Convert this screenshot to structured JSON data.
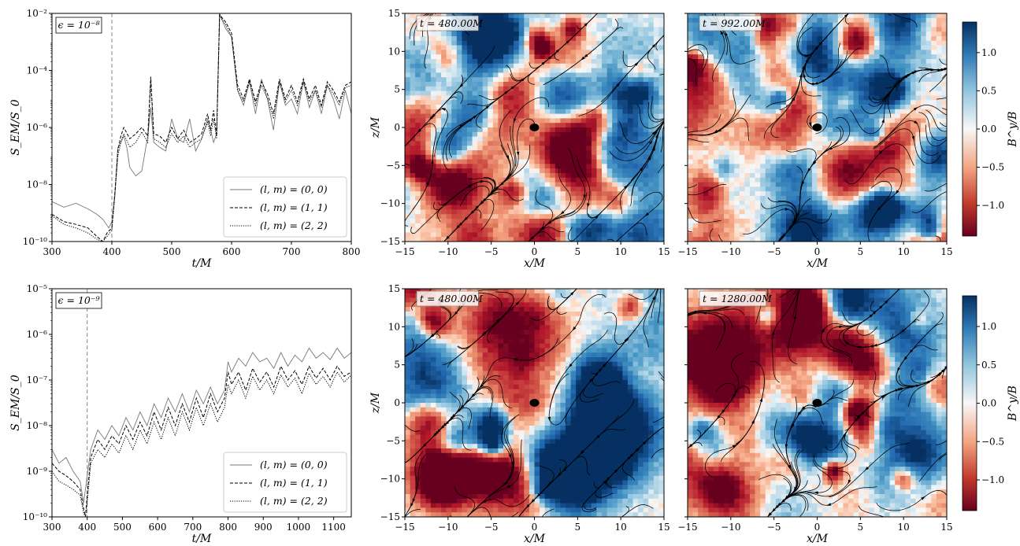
{
  "chart_data": [
    {
      "type": "line",
      "ylabel": "S_EM/S_0",
      "xlabel": "t/M",
      "yscale": "log",
      "xlim": [
        300,
        800
      ],
      "ylim": [
        1e-10,
        0.01
      ],
      "xticks": [
        "300",
        "400",
        "500",
        "600",
        "700",
        "800"
      ],
      "yticks": [
        {
          "v": 1e-10,
          "t": "10⁻¹⁰"
        },
        {
          "v": 1e-08,
          "t": "10⁻⁸"
        },
        {
          "v": 1e-06,
          "t": "10⁻⁶"
        },
        {
          "v": 0.0001,
          "t": "10⁻⁴"
        },
        {
          "v": 0.01,
          "t": "10⁻²"
        }
      ],
      "annotation": "ϵ = 10⁻⁸",
      "vline_x": 400,
      "legend_position": "lower-right",
      "series": [
        {
          "name": "(l, m) = (0, 0)",
          "style": "solid",
          "color": "#777777",
          "x": [
            300,
            320,
            340,
            360,
            375,
            385,
            395,
            400,
            405,
            410,
            415,
            420,
            425,
            430,
            440,
            450,
            460,
            465,
            470,
            480,
            490,
            500,
            510,
            520,
            530,
            540,
            550,
            560,
            565,
            570,
            575,
            580,
            590,
            600,
            610,
            620,
            630,
            640,
            650,
            660,
            670,
            680,
            690,
            700,
            710,
            720,
            730,
            740,
            750,
            760,
            770,
            780,
            790,
            800
          ],
          "y": [
            2.5e-09,
            1.6e-09,
            2.2e-09,
            1.4e-09,
            9e-10,
            6e-10,
            3e-10,
            5e-10,
            4e-09,
            2e-07,
            3e-07,
            5e-07,
            2e-07,
            4e-08,
            2e-08,
            3e-08,
            5e-07,
            5e-06,
            3e-07,
            2e-07,
            1.5e-07,
            2e-06,
            4e-07,
            3e-07,
            2e-06,
            1.5e-07,
            4e-07,
            2e-06,
            8e-07,
            3e-07,
            6e-07,
            0.01,
            0.003,
            0.0015,
            2e-05,
            6e-06,
            4e-05,
            3e-06,
            5e-05,
            1e-05,
            8e-07,
            4e-05,
            6e-06,
            1e-05,
            3e-06,
            4e-05,
            5e-06,
            2e-05,
            3e-06,
            3e-05,
            1e-05,
            2e-06,
            2e-05,
            3e-06
          ]
        },
        {
          "name": "(l, m) = (1, 1)",
          "style": "dashed",
          "color": "#000000",
          "x": [
            300,
            320,
            340,
            360,
            375,
            385,
            392,
            400,
            405,
            410,
            415,
            420,
            430,
            440,
            450,
            460,
            465,
            470,
            480,
            490,
            500,
            510,
            520,
            530,
            540,
            550,
            560,
            565,
            570,
            575,
            580,
            590,
            600,
            610,
            620,
            630,
            640,
            650,
            660,
            670,
            680,
            690,
            700,
            710,
            720,
            730,
            740,
            750,
            760,
            770,
            780,
            790,
            800
          ],
          "y": [
            9e-10,
            5e-10,
            4e-10,
            3e-10,
            1.5e-10,
            1e-10,
            2e-10,
            3e-10,
            5e-09,
            1.5e-07,
            5e-07,
            1e-06,
            4e-07,
            6e-07,
            1e-06,
            5e-07,
            6e-05,
            6e-07,
            5e-07,
            3e-07,
            1e-06,
            4e-07,
            8e-07,
            3e-07,
            4e-07,
            6e-07,
            3e-06,
            8e-07,
            4e-06,
            5e-07,
            0.009,
            0.005,
            0.002,
            3e-05,
            1e-05,
            5e-05,
            8e-06,
            4e-05,
            1.5e-05,
            3e-06,
            5e-05,
            1e-05,
            3e-05,
            8e-06,
            5e-05,
            1e-05,
            3e-05,
            6e-06,
            4e-05,
            2e-05,
            8e-06,
            3e-05,
            4e-05
          ]
        },
        {
          "name": "(l, m) = (2, 2)",
          "style": "dotted",
          "color": "#000000",
          "x": [
            300,
            320,
            340,
            360,
            375,
            385,
            392,
            400,
            405,
            410,
            415,
            420,
            430,
            440,
            450,
            460,
            465,
            470,
            480,
            490,
            500,
            510,
            520,
            530,
            540,
            550,
            560,
            565,
            570,
            575,
            580,
            590,
            600,
            610,
            620,
            630,
            640,
            650,
            660,
            670,
            680,
            690,
            700,
            710,
            720,
            730,
            740,
            750,
            760,
            770,
            780,
            790,
            800
          ],
          "y": [
            8e-10,
            4e-10,
            3e-10,
            2e-10,
            1.2e-10,
            1e-10,
            1.5e-10,
            2.5e-10,
            4e-09,
            1e-07,
            3e-07,
            6e-07,
            2e-07,
            3e-07,
            7e-07,
            3e-07,
            4e-05,
            4e-07,
            3e-07,
            2e-07,
            6e-07,
            3e-07,
            5e-07,
            2e-07,
            3e-07,
            4e-07,
            1.5e-06,
            5e-07,
            2e-06,
            4e-07,
            0.008,
            0.004,
            0.0015,
            2e-05,
            8e-06,
            4e-05,
            6e-06,
            3e-05,
            1e-05,
            2e-06,
            4e-05,
            8e-06,
            2e-05,
            6e-06,
            4e-05,
            8e-06,
            2e-05,
            5e-06,
            3e-05,
            1.5e-05,
            6e-06,
            2.5e-05,
            3e-05
          ]
        }
      ]
    },
    {
      "type": "heatmap",
      "annotation": "t = 480.00M",
      "xlabel": "x/M",
      "ylabel": "z/M",
      "xlim": [
        -15,
        15
      ],
      "ylim": [
        -15,
        15
      ],
      "xticks": [
        "−15",
        "−10",
        "−5",
        "0",
        "5",
        "10",
        "15"
      ],
      "yticks": [
        "−15",
        "−10",
        "−5",
        "0",
        "5",
        "10",
        "15"
      ]
    },
    {
      "type": "heatmap",
      "annotation": "t = 992.00M",
      "xlabel": "x/M",
      "xlim": [
        -15,
        15
      ],
      "ylim": [
        -15,
        15
      ],
      "xticks": [
        "−15",
        "−10",
        "−5",
        "0",
        "5",
        "10",
        "15"
      ]
    },
    {
      "type": "colorbar",
      "label": "B^y/B",
      "range": [
        -1.4,
        1.4
      ],
      "ticks": [
        "1.0",
        "0.5",
        "0.0",
        "−0.5",
        "−1.0"
      ],
      "tick_values": [
        1.0,
        0.5,
        0.0,
        -0.5,
        -1.0
      ]
    },
    {
      "type": "line",
      "ylabel": "S_EM/S_0",
      "xlabel": "t/M",
      "yscale": "log",
      "xlim": [
        300,
        1150
      ],
      "ylim": [
        1e-10,
        1e-05
      ],
      "xticks": [
        "300",
        "400",
        "500",
        "600",
        "700",
        "800",
        "900",
        "1000",
        "1100"
      ],
      "yticks": [
        {
          "v": 1e-10,
          "t": "10⁻¹⁰"
        },
        {
          "v": 1e-09,
          "t": "10⁻⁹"
        },
        {
          "v": 1e-08,
          "t": "10⁻⁸"
        },
        {
          "v": 1e-07,
          "t": "10⁻⁷"
        },
        {
          "v": 1e-06,
          "t": "10⁻⁶"
        },
        {
          "v": 1e-05,
          "t": "10⁻⁵"
        }
      ],
      "annotation": "ϵ = 10⁻⁹",
      "vline_x": 400,
      "legend_position": "lower-right",
      "series": [
        {
          "name": "(l, m) = (0, 0)",
          "style": "solid",
          "color": "#777777",
          "x": [
            300,
            320,
            340,
            360,
            380,
            390,
            400,
            410,
            430,
            450,
            470,
            490,
            510,
            530,
            550,
            570,
            590,
            610,
            630,
            650,
            670,
            690,
            710,
            730,
            750,
            770,
            790,
            800,
            810,
            830,
            850,
            870,
            890,
            910,
            930,
            950,
            970,
            990,
            1010,
            1030,
            1050,
            1070,
            1090,
            1110,
            1130,
            1150
          ],
          "y": [
            3e-09,
            1.5e-09,
            2e-09,
            1e-09,
            6e-10,
            2e-10,
            8e-10,
            3e-09,
            8e-09,
            5e-09,
            1e-08,
            6e-09,
            1.5e-08,
            8e-09,
            2e-08,
            1e-08,
            3e-08,
            1.5e-08,
            4e-08,
            2e-08,
            5e-08,
            2e-08,
            6e-08,
            3e-08,
            7e-08,
            3e-08,
            6e-08,
            2.5e-07,
            1.5e-07,
            3e-07,
            2e-07,
            4e-07,
            2.5e-07,
            3e-07,
            1.8e-07,
            4e-07,
            2e-07,
            3.5e-07,
            2.5e-07,
            5e-07,
            3e-07,
            4e-07,
            2.8e-07,
            5e-07,
            3e-07,
            4e-07
          ]
        },
        {
          "name": "(l, m) = (1, 1)",
          "style": "dashed",
          "color": "#000000",
          "x": [
            300,
            320,
            340,
            360,
            380,
            390,
            395,
            400,
            410,
            430,
            450,
            470,
            490,
            510,
            530,
            550,
            570,
            590,
            610,
            630,
            650,
            670,
            690,
            710,
            730,
            750,
            770,
            790,
            800,
            810,
            830,
            850,
            870,
            890,
            910,
            930,
            950,
            970,
            990,
            1010,
            1030,
            1050,
            1070,
            1090,
            1110,
            1130,
            1150
          ],
          "y": [
            1.5e-09,
            1e-09,
            8e-10,
            6e-10,
            4e-10,
            1.5e-10,
            1e-10,
            3e-10,
            2e-09,
            5e-09,
            3e-09,
            6e-09,
            4e-09,
            1e-08,
            5e-09,
            1.2e-08,
            6e-09,
            2e-08,
            8e-09,
            2.5e-08,
            1e-08,
            3e-08,
            1.2e-08,
            4e-08,
            1.5e-08,
            5e-08,
            2e-08,
            4e-08,
            1.5e-07,
            8e-08,
            1.5e-07,
            6e-08,
            1.8e-07,
            9e-08,
            1.5e-07,
            7e-08,
            2e-07,
            1e-07,
            1.6e-07,
            8e-08,
            2e-07,
            1.1e-07,
            1.8e-07,
            1e-07,
            2e-07,
            1.2e-07,
            1.5e-07
          ]
        },
        {
          "name": "(l, m) = (2, 2)",
          "style": "dotted",
          "color": "#000000",
          "x": [
            300,
            320,
            340,
            360,
            380,
            390,
            395,
            400,
            410,
            430,
            450,
            470,
            490,
            510,
            530,
            550,
            570,
            590,
            610,
            630,
            650,
            670,
            690,
            710,
            730,
            750,
            770,
            790,
            800,
            810,
            830,
            850,
            870,
            890,
            910,
            930,
            950,
            970,
            990,
            1010,
            1030,
            1050,
            1070,
            1090,
            1110,
            1130,
            1150
          ],
          "y": [
            1e-09,
            6e-10,
            5e-10,
            4e-10,
            3e-10,
            1.2e-10,
            1e-10,
            2e-10,
            1.5e-09,
            3e-09,
            2e-09,
            4e-09,
            2.5e-09,
            6e-09,
            3e-09,
            8e-09,
            4e-09,
            1.2e-08,
            5e-09,
            1.5e-08,
            6e-09,
            2e-08,
            8e-09,
            2.5e-08,
            1e-08,
            3e-08,
            1.2e-08,
            2.5e-08,
            8e-08,
            5e-08,
            1e-07,
            4e-08,
            1.2e-07,
            6e-08,
            1e-07,
            5e-08,
            1.3e-07,
            7e-08,
            1.1e-07,
            5e-08,
            1.4e-07,
            8e-08,
            1.2e-07,
            7e-08,
            1.5e-07,
            9e-08,
            1.3e-07
          ]
        }
      ]
    },
    {
      "type": "heatmap",
      "annotation": "t = 480.00M",
      "xlabel": "x/M",
      "ylabel": "z/M",
      "xlim": [
        -15,
        15
      ],
      "ylim": [
        -15,
        15
      ],
      "xticks": [
        "−15",
        "−10",
        "−5",
        "0",
        "5",
        "10",
        "15"
      ],
      "yticks": [
        "−15",
        "−10",
        "−5",
        "0",
        "5",
        "10",
        "15"
      ]
    },
    {
      "type": "heatmap",
      "annotation": "t = 1280.00M",
      "xlabel": "x/M",
      "xlim": [
        -15,
        15
      ],
      "ylim": [
        -15,
        15
      ],
      "xticks": [
        "−15",
        "−10",
        "−5",
        "0",
        "5",
        "10",
        "15"
      ]
    },
    {
      "type": "colorbar",
      "label": "B^y/B",
      "range": [
        -1.4,
        1.4
      ],
      "ticks": [
        "1.0",
        "0.5",
        "0.0",
        "−0.5",
        "−1.0"
      ],
      "tick_values": [
        1.0,
        0.5,
        0.0,
        -0.5,
        -1.0
      ]
    }
  ]
}
